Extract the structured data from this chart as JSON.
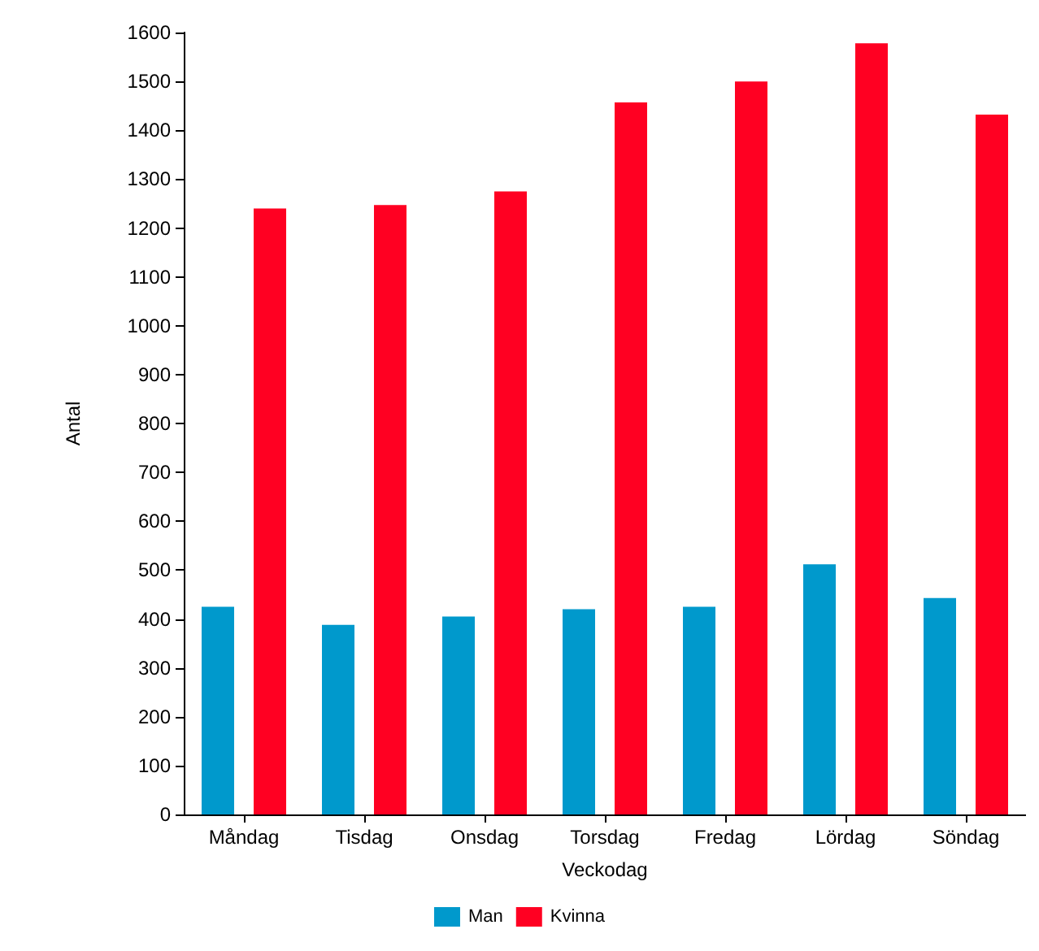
{
  "chart_data": {
    "type": "bar",
    "xlabel": "Veckodag",
    "ylabel": "Antal",
    "categories": [
      "Måndag",
      "Tisdag",
      "Onsdag",
      "Torsdag",
      "Fredag",
      "Lördag",
      "Söndag"
    ],
    "series": [
      {
        "name": "Man",
        "color": "#0099cc",
        "values": [
          425,
          388,
          405,
          420,
          425,
          512,
          443
        ]
      },
      {
        "name": "Kvinna",
        "color": "#ff0022",
        "values": [
          1240,
          1247,
          1275,
          1457,
          1500,
          1578,
          1432
        ]
      }
    ],
    "ylim": [
      0,
      1600
    ],
    "yticks": [
      0,
      100,
      200,
      300,
      400,
      500,
      600,
      700,
      800,
      900,
      1000,
      1100,
      1200,
      1300,
      1400,
      1500,
      1600
    ],
    "grid": false,
    "legend": "bottom"
  }
}
